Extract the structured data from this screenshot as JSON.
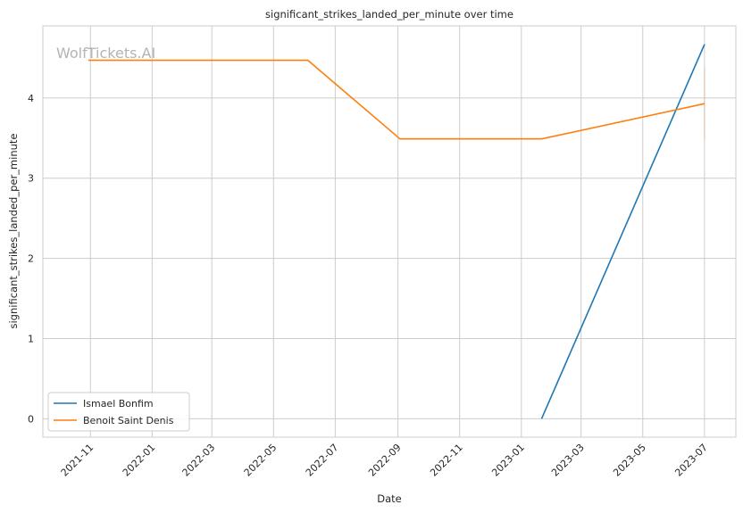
{
  "chart_data": {
    "type": "line",
    "title": "significant_strikes_landed_per_minute over time",
    "xlabel": "Date",
    "ylabel": "significant_strikes_landed_per_minute",
    "watermark": "WolfTickets.AI",
    "x_range": [
      "2021-09-15",
      "2023-08-01"
    ],
    "ylim": [
      -0.23,
      4.9
    ],
    "x_ticks": [
      "2021-11",
      "2022-01",
      "2022-03",
      "2022-05",
      "2022-07",
      "2022-09",
      "2022-11",
      "2023-01",
      "2023-03",
      "2023-05",
      "2023-07"
    ],
    "y_ticks": [
      0,
      1,
      2,
      3,
      4
    ],
    "grid": true,
    "legend_position": "lower-left",
    "series": [
      {
        "name": "Ismael Bonfim",
        "color": "#1f77b4",
        "points": [
          {
            "x": "2023-01-21",
            "y": 0.0
          },
          {
            "x": "2023-07-01",
            "y": 4.67
          }
        ]
      },
      {
        "name": "Benoit Saint Denis",
        "color": "#ff7f0e",
        "points": [
          {
            "x": "2021-10-30",
            "y": 4.47
          },
          {
            "x": "2022-06-04",
            "y": 4.47
          },
          {
            "x": "2022-09-03",
            "y": 3.49
          },
          {
            "x": "2023-01-21",
            "y": 3.49
          },
          {
            "x": "2023-07-01",
            "y": 3.93
          }
        ]
      }
    ]
  }
}
